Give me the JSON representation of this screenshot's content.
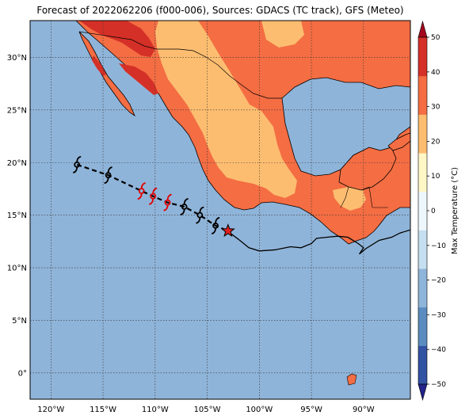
{
  "title": "Forecast of 2022062206 (f000-006), Sources: GDACS (TC track), GFS (Meteo)",
  "map": {
    "lon_range": [
      -122,
      -85.5
    ],
    "lat_range": [
      -2.5,
      33.5
    ],
    "lon_ticks": [
      {
        "value": -120,
        "label": "120°W"
      },
      {
        "value": -115,
        "label": "115°W"
      },
      {
        "value": -110,
        "label": "110°W"
      },
      {
        "value": -105,
        "label": "105°W"
      },
      {
        "value": -100,
        "label": "100°W"
      },
      {
        "value": -95,
        "label": "95°W"
      },
      {
        "value": -90,
        "label": "90°W"
      }
    ],
    "lat_ticks": [
      {
        "value": 30,
        "label": "30°N"
      },
      {
        "value": 25,
        "label": "25°N"
      },
      {
        "value": 20,
        "label": "20°N"
      },
      {
        "value": 15,
        "label": "15°N"
      },
      {
        "value": 10,
        "label": "10°N"
      },
      {
        "value": 5,
        "label": "5°N"
      },
      {
        "value": 0,
        "label": "0°"
      }
    ],
    "gridlines": true,
    "ocean_color": "#8fb4d9"
  },
  "colorbar": {
    "label": "Max Temperature (°C)",
    "ticks": [
      "50",
      "40",
      "30",
      "20",
      "10",
      "0",
      "−10",
      "−20",
      "−30",
      "−40",
      "−50"
    ],
    "tick_values": [
      50,
      40,
      30,
      20,
      10,
      0,
      -10,
      -20,
      -30,
      -40,
      -50
    ],
    "range": [
      -50,
      50
    ],
    "colors_low_to_high": [
      "#23238a",
      "#3252a3",
      "#5a8cc0",
      "#8fb4d9",
      "#c5def0",
      "#eef7fb",
      "#fff7c6",
      "#fdbd70",
      "#f46d43",
      "#d53027",
      "#a3071c"
    ]
  },
  "track": {
    "current_position": {
      "lon": -103.0,
      "lat": 13.5,
      "symbol": "star",
      "color": "#e02020"
    },
    "points": [
      {
        "lon": -117.5,
        "lat": 19.8,
        "color": "#000000"
      },
      {
        "lon": -114.5,
        "lat": 18.8,
        "color": "#000000"
      },
      {
        "lon": -111.3,
        "lat": 17.3,
        "color": "#e00000"
      },
      {
        "lon": -110.2,
        "lat": 16.8,
        "color": "#e00000"
      },
      {
        "lon": -108.8,
        "lat": 16.2,
        "color": "#e00000"
      },
      {
        "lon": -107.2,
        "lat": 15.8,
        "color": "#000000"
      },
      {
        "lon": -105.7,
        "lat": 15.0,
        "color": "#000000"
      },
      {
        "lon": -104.2,
        "lat": 14.0,
        "color": "#000000"
      }
    ],
    "legend_items": []
  }
}
